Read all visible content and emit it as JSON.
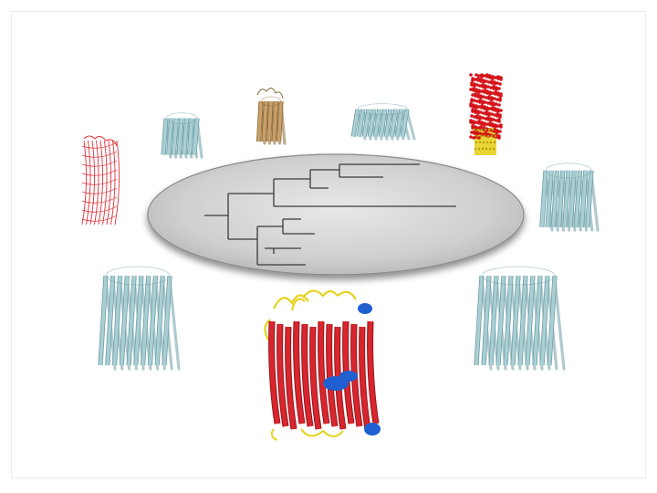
{
  "figure": {
    "platform": {
      "fill": "#cfcfcf",
      "edge": "#7a7a7a"
    },
    "colors": {
      "barrel_light": "#a9cfd4",
      "barrel_dark": "#6f9ea6",
      "main_sheet": "#d8262e",
      "main_sheet_dark": "#9c1218",
      "helix_blue": "#1f5fd0",
      "loop_yellow": "#e6d21e",
      "tan_barrel": "#c8a06a",
      "red_outline": "#e0303a",
      "dense_red": "#d4141a",
      "tree_line": "#3a3a3a"
    },
    "structures": [
      {
        "name": "outer-membrane-beta-barrel-main",
        "kind": "red-sheet-barrel-with-helices"
      },
      {
        "name": "small-barrel-upper-left",
        "kind": "cyan-barrel"
      },
      {
        "name": "tan-barrel-top",
        "kind": "tan-barrel"
      },
      {
        "name": "wide-short-barrel-top",
        "kind": "cyan-barrel"
      },
      {
        "name": "dense-red-helical-bundle",
        "kind": "red-yellow-bundle"
      },
      {
        "name": "red-outline-barrel-left",
        "kind": "red-outline-barrel"
      },
      {
        "name": "cyan-barrel-right",
        "kind": "cyan-barrel"
      },
      {
        "name": "large-cyan-barrel-lower-left",
        "kind": "cyan-barrel"
      },
      {
        "name": "large-cyan-barrel-lower-right",
        "kind": "cyan-barrel"
      }
    ],
    "tree_leaves": 11
  }
}
